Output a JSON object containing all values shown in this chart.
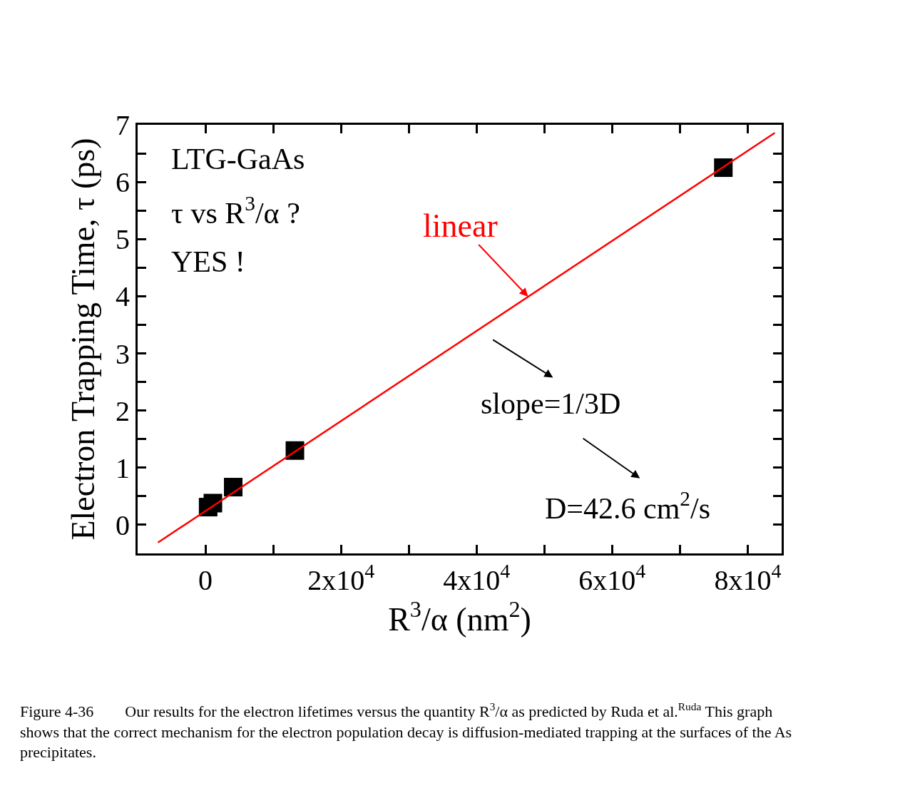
{
  "chart_data": {
    "type": "scatter",
    "xlabel": "R$^{3}$/α (nm$^{2}$)",
    "ylabel": "Electron Trapping Time, τ (ps)",
    "x": [
      400,
      1100,
      4100,
      13200,
      76400
    ],
    "series": [
      {
        "color": "#000000",
        "marker": "square",
        "values": [
          0.31,
          0.38,
          0.66,
          1.3,
          6.25
        ]
      },
      {
        "type": "line",
        "name": "linear",
        "color": "#ff0000",
        "x": [
          -7000,
          84000
        ],
        "values": [
          -0.31,
          6.86
        ]
      }
    ],
    "xlim": [
      -10000,
      85000
    ],
    "xticks": [
      {
        "value": 0,
        "label": "0"
      },
      {
        "value": 10000,
        "label": null
      },
      {
        "value": 20000,
        "label": "2x10$^{4}$"
      },
      {
        "value": 30000,
        "label": null
      },
      {
        "value": 40000,
        "label": "4x10$^{4}$"
      },
      {
        "value": 50000,
        "label": null
      },
      {
        "value": 60000,
        "label": "6x10$^{4}$"
      },
      {
        "value": 70000,
        "label": null
      },
      {
        "value": 80000,
        "label": "8x10$^{4}$"
      }
    ],
    "ylim": [
      -0.5,
      7
    ],
    "yticks": [
      0,
      {
        "value": 0.5,
        "label": null
      },
      1,
      {
        "value": 1.5,
        "label": null
      },
      2,
      {
        "value": 2.5,
        "label": null
      },
      3,
      {
        "value": 3.5,
        "label": null
      },
      4,
      {
        "value": 4.5,
        "label": null
      },
      5,
      {
        "value": 5.5,
        "label": null
      },
      6,
      {
        "value": 6.5,
        "label": null
      },
      7
    ],
    "legend": false,
    "annotations": [
      "LTG-GaAs",
      "τ vs R$^{3}$/α ?",
      "YES !",
      "slope=1/3D",
      "D=42.6 cm$^{2}$/s",
      "Figure 4-36        Our results for the electron lifetimes versus the quantity R$^{3}$/α as predicted by Ruda et al.$^{Ruda}$ This graph shows that the correct mechanism for the electron population decay is diffusion-mediated trapping at the surfaces of the As precipitates."
    ]
  }
}
